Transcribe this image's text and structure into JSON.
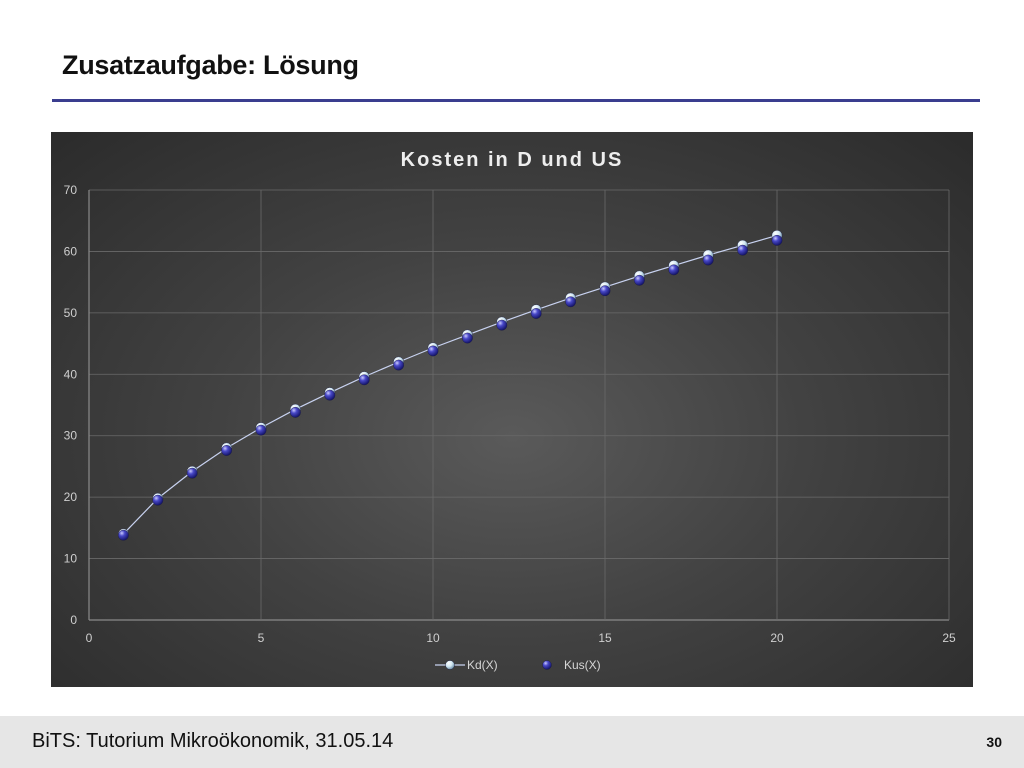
{
  "slide": {
    "title": "Zusatzaufgabe: Lösung",
    "footer": "BiTS: Tutorium Mikroökonomik, 31.05.14",
    "page_number": "30"
  },
  "colors": {
    "rule": "#3a3d8f",
    "series_kd": "#dfeff8",
    "series_kus": "#3a3aa8",
    "line": "#c8d2f0"
  },
  "chart_data": {
    "type": "scatter",
    "title": "Kosten in D und US",
    "xlim": [
      0,
      25
    ],
    "ylim": [
      0,
      70
    ],
    "x_ticks": [
      0,
      5,
      10,
      15,
      20,
      25
    ],
    "y_ticks": [
      0,
      10,
      20,
      30,
      40,
      50,
      60,
      70
    ],
    "grid": true,
    "legend": "bottom",
    "series": [
      {
        "name": "Kd(X)",
        "marker": "light-sphere",
        "line": true,
        "x": [
          1,
          2,
          3,
          4,
          5,
          6,
          7,
          8,
          9,
          10,
          11,
          12,
          13,
          14,
          15,
          16,
          17,
          18,
          19,
          20
        ],
        "y": [
          14.0,
          19.8,
          24.2,
          28.0,
          31.3,
          34.3,
          37.0,
          39.6,
          42.0,
          44.3,
          46.4,
          48.5,
          50.5,
          52.4,
          54.2,
          56.0,
          57.7,
          59.4,
          61.0,
          62.6
        ]
      },
      {
        "name": "Kus(X)",
        "marker": "dark-sphere",
        "line": false,
        "x": [
          1,
          2,
          3,
          4,
          5,
          6,
          7,
          8,
          9,
          10,
          11,
          12,
          13,
          14,
          15,
          16,
          17,
          18,
          19,
          20
        ],
        "y": [
          13.8,
          19.5,
          23.9,
          27.6,
          30.9,
          33.8,
          36.6,
          39.1,
          41.5,
          43.8,
          45.9,
          48.0,
          49.9,
          51.8,
          53.6,
          55.3,
          57.0,
          58.6,
          60.2,
          61.8
        ]
      }
    ]
  }
}
